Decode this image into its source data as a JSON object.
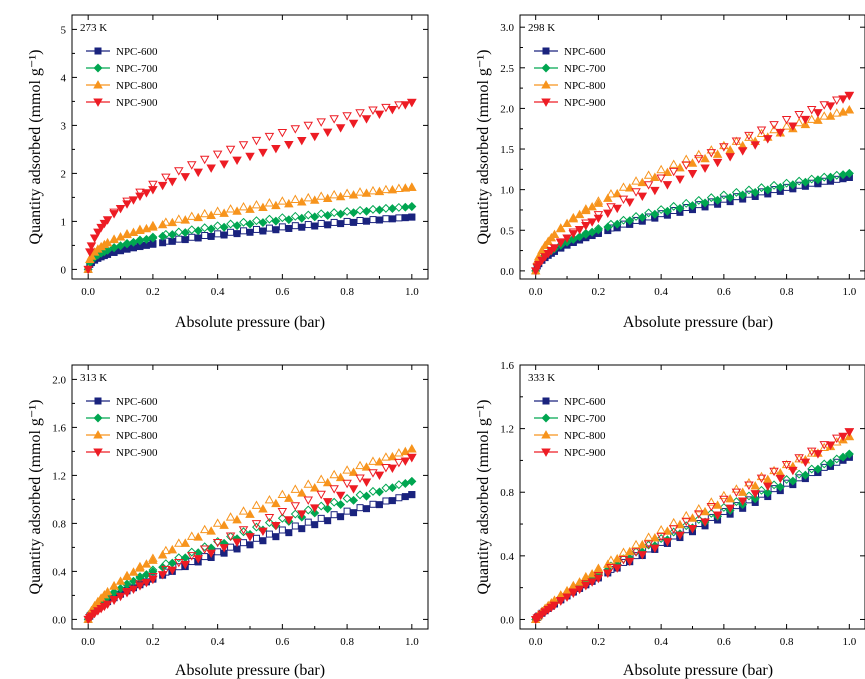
{
  "chart_data": [
    {
      "type": "scatter",
      "title": "",
      "temperature_label": "273 K",
      "xlabel": "Absolute pressure (bar)",
      "ylabel": "Quantity adsorbed (mmol g⁻¹)",
      "xlim": [
        -0.05,
        1.05
      ],
      "ylim": [
        -0.2,
        5.3
      ],
      "xticks": [
        0.0,
        0.2,
        0.4,
        0.6,
        0.8,
        1.0
      ],
      "xtick_labels": [
        "0.0",
        "0.2",
        "0.4",
        "0.6",
        "0.8",
        "1.0"
      ],
      "yticks": [
        0,
        1,
        2,
        3,
        4,
        5
      ],
      "ytick_labels": [
        "0",
        "1",
        "2",
        "3",
        "4",
        "5"
      ],
      "legend": "top-left",
      "grid": false,
      "series": [
        {
          "name": "NPC-600",
          "color": "#1a237e",
          "marker": "square",
          "curve": {
            "a": 1.26,
            "b": 3.0,
            "c": 1.09
          }
        },
        {
          "name": "NPC-700",
          "color": "#00a651",
          "marker": "diamond",
          "curve": {
            "a": 1.38,
            "b": 3.5,
            "c": 1.31
          }
        },
        {
          "name": "NPC-800",
          "color": "#f7941d",
          "marker": "triangle-up",
          "curve": {
            "a": 1.51,
            "b": 3.0,
            "c": 1.71
          }
        },
        {
          "name": "NPC-900",
          "color": "#ed1c24",
          "marker": "triangle-down",
          "curve": {
            "a": 1.35,
            "b": 2.0,
            "c": 3.48
          }
        }
      ]
    },
    {
      "type": "scatter",
      "title": "",
      "temperature_label": "298 K",
      "xlabel": "Absolute pressure (bar)",
      "ylabel": "Quantity adsorbed (mmol g⁻¹)",
      "xlim": [
        -0.05,
        1.05
      ],
      "ylim": [
        -0.1,
        3.15
      ],
      "xticks": [
        0.0,
        0.2,
        0.4,
        0.6,
        0.8,
        1.0
      ],
      "xtick_labels": [
        "0.0",
        "0.2",
        "0.4",
        "0.6",
        "0.8",
        "1.0"
      ],
      "yticks": [
        0.0,
        0.5,
        1.0,
        1.5,
        2.0,
        2.5,
        3.0
      ],
      "ytick_labels": [
        "0.0",
        "0.5",
        "1.0",
        "1.5",
        "2.0",
        "2.5",
        "3.0"
      ],
      "legend": "top-left",
      "grid": false,
      "series": [
        {
          "name": "NPC-600",
          "color": "#1a237e",
          "marker": "square",
          "curve": {
            "a": 0.8,
            "b": 4.0,
            "c": 1.15
          }
        },
        {
          "name": "NPC-700",
          "color": "#00a651",
          "marker": "diamond",
          "curve": {
            "a": 0.9,
            "b": 4.0,
            "c": 1.2
          }
        },
        {
          "name": "NPC-800",
          "color": "#f7941d",
          "marker": "triangle-up",
          "curve": {
            "a": 0.9,
            "b": 4.0,
            "c": 1.98
          }
        },
        {
          "name": "NPC-900",
          "color": "#ed1c24",
          "marker": "triangle-down",
          "curve": {
            "a": 0.4,
            "b": 5.0,
            "c": 2.16
          }
        }
      ]
    },
    {
      "type": "scatter",
      "title": "",
      "temperature_label": "313 K",
      "xlabel": "Absolute pressure (bar)",
      "ylabel": "Quantity adsorbed (mmol g⁻¹)",
      "xlim": [
        -0.05,
        1.05
      ],
      "ylim": [
        -0.08,
        2.12
      ],
      "xticks": [
        0.0,
        0.2,
        0.4,
        0.6,
        0.8,
        1.0
      ],
      "xtick_labels": [
        "0.0",
        "0.2",
        "0.4",
        "0.6",
        "0.8",
        "1.0"
      ],
      "yticks": [
        0.0,
        0.4,
        0.8,
        1.2,
        1.6,
        2.0
      ],
      "ytick_labels": [
        "0.0",
        "0.4",
        "0.8",
        "1.2",
        "1.6",
        "2.0"
      ],
      "legend": "top-left",
      "grid": false,
      "series": [
        {
          "name": "NPC-600",
          "color": "#1a237e",
          "marker": "square",
          "curve": {
            "a": 0.45,
            "b": 5.0,
            "c": 1.04
          }
        },
        {
          "name": "NPC-700",
          "color": "#00a651",
          "marker": "diamond",
          "curve": {
            "a": 0.55,
            "b": 5.0,
            "c": 1.15
          }
        },
        {
          "name": "NPC-800",
          "color": "#f7941d",
          "marker": "triangle-up",
          "curve": {
            "a": 0.55,
            "b": 5.0,
            "c": 1.42
          }
        },
        {
          "name": "NPC-900",
          "color": "#ed1c24",
          "marker": "triangle-down",
          "curve": {
            "a": 0.2,
            "b": 6.0,
            "c": 1.35
          }
        }
      ]
    },
    {
      "type": "scatter",
      "title": "",
      "temperature_label": "333 K",
      "xlabel": "Absolute pressure (bar)",
      "ylabel": "Quantity adsorbed (mmol g⁻¹)",
      "xlim": [
        -0.05,
        1.05
      ],
      "ylim": [
        -0.06,
        1.6
      ],
      "xticks": [
        0.0,
        0.2,
        0.4,
        0.6,
        0.8,
        1.0
      ],
      "xtick_labels": [
        "0.0",
        "0.2",
        "0.4",
        "0.6",
        "0.8",
        "1.0"
      ],
      "yticks": [
        0.0,
        0.4,
        0.8,
        1.2,
        1.6
      ],
      "ytick_labels": [
        "0.0",
        "0.4",
        "0.8",
        "1.2",
        "1.6"
      ],
      "legend": "top-left",
      "grid": false,
      "series": [
        {
          "name": "NPC-600",
          "color": "#1a237e",
          "marker": "square",
          "curve": {
            "a": 0.2,
            "b": 6.0,
            "c": 1.02
          }
        },
        {
          "name": "NPC-700",
          "color": "#00a651",
          "marker": "diamond",
          "curve": {
            "a": 0.25,
            "b": 6.0,
            "c": 1.04
          }
        },
        {
          "name": "NPC-800",
          "color": "#f7941d",
          "marker": "triangle-up",
          "curve": {
            "a": 0.25,
            "b": 6.0,
            "c": 1.15
          }
        },
        {
          "name": "NPC-900",
          "color": "#ed1c24",
          "marker": "triangle-down",
          "curve": {
            "a": 0.1,
            "b": 7.0,
            "c": 1.18
          }
        }
      ]
    }
  ]
}
